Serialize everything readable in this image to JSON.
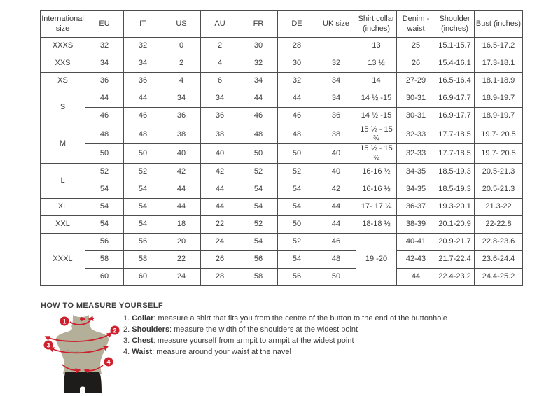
{
  "size_table": {
    "columns": [
      "International size",
      "EU",
      "IT",
      "US",
      "AU",
      "FR",
      "DE",
      "UK size",
      "Shirt collar (inches)",
      "Denim - waist",
      "Shoulder (inches)",
      "Bust (inches)"
    ],
    "rows": [
      [
        {
          "t": "XXXS"
        },
        "32",
        "32",
        "0",
        "2",
        "30",
        "28",
        "",
        "13",
        "25",
        "15.1-15.7",
        "16.5-17.2"
      ],
      [
        {
          "t": "XXS"
        },
        "34",
        "34",
        "2",
        "4",
        "32",
        "30",
        "32",
        "13 ½",
        "26",
        "15.4-16.1",
        "17.3-18.1"
      ],
      [
        {
          "t": "XS"
        },
        "36",
        "36",
        "4",
        "6",
        "34",
        "32",
        "34",
        "14",
        "27-29",
        "16.5-16.4",
        "18.1-18.9"
      ],
      [
        {
          "t": "S",
          "rs": 2
        },
        "44",
        "44",
        "34",
        "34",
        "44",
        "44",
        "34",
        "14 ½ -15",
        "30-31",
        "16.9-17.7",
        "18.9-19.7"
      ],
      [
        "46",
        "46",
        "36",
        "36",
        "46",
        "46",
        "36",
        "14 ½ -15",
        "30-31",
        "16.9-17.7",
        "18.9-19.7"
      ],
      [
        {
          "t": "M",
          "rs": 2
        },
        "48",
        "48",
        "38",
        "38",
        "48",
        "48",
        "38",
        "15 ½ - 15 ¾",
        "32-33",
        "17.7-18.5",
        "19.7- 20.5"
      ],
      [
        "50",
        "50",
        "40",
        "40",
        "50",
        "50",
        "40",
        "15 ½ - 15 ¾",
        "32-33",
        "17.7-18.5",
        "19.7- 20.5"
      ],
      [
        {
          "t": "L",
          "rs": 2
        },
        "52",
        "52",
        "42",
        "42",
        "52",
        "52",
        "40",
        "16-16 ½",
        "34-35",
        "18.5-19.3",
        "20.5-21.3"
      ],
      [
        "54",
        "54",
        "44",
        "44",
        "54",
        "54",
        "42",
        "16-16 ½",
        "34-35",
        "18.5-19.3",
        "20.5-21.3"
      ],
      [
        {
          "t": "XL"
        },
        "54",
        "54",
        "44",
        "44",
        "54",
        "54",
        "44",
        "17- 17 ¼",
        "36-37",
        "19.3-20.1",
        "21.3-22"
      ],
      [
        {
          "t": "XXL"
        },
        "54",
        "54",
        "18",
        "22",
        "52",
        "50",
        "44",
        "18-18 ½",
        "38-39",
        "20.1-20.9",
        "22-22.8"
      ],
      [
        {
          "t": "XXXL",
          "rs": 3
        },
        "56",
        "56",
        "20",
        "24",
        "54",
        "52",
        "46",
        {
          "t": "19 -20",
          "rs": 3
        },
        "40-41",
        "20.9-21.7",
        "22.8-23.6"
      ],
      [
        "58",
        "58",
        "22",
        "26",
        "56",
        "54",
        "48",
        "42-43",
        "21.7-22.4",
        "23.6-24.4"
      ],
      [
        "60",
        "60",
        "24",
        "28",
        "58",
        "56",
        "50",
        "44",
        "22.4-23.2",
        "24.4-25.2"
      ]
    ]
  },
  "measure": {
    "heading": "HOW TO MEASURE YOURSELF",
    "badges": [
      "1",
      "2",
      "3",
      "4"
    ],
    "items": [
      {
        "number": "1.",
        "label": "Collar",
        "text": "measure a shirt that fits you from the centre of the button to the end of the buttonhole"
      },
      {
        "number": "2.",
        "label": "Shoulders",
        "text": "measure the width of the shoulders at the widest point"
      },
      {
        "number": "3.",
        "label": "Chest",
        "text": "measure yourself from armpit to armpit at the widest point"
      },
      {
        "number": "4.",
        "label": "Waist",
        "text": "measure around your waist at the navel"
      }
    ]
  },
  "colors": {
    "accent_red": "#cf202e",
    "torso": "#b3af99",
    "torso_shade": "#9e9a85",
    "shorts": "#1e1c1a",
    "table_border": "#4d4d4d",
    "text": "#3b3b3b"
  }
}
